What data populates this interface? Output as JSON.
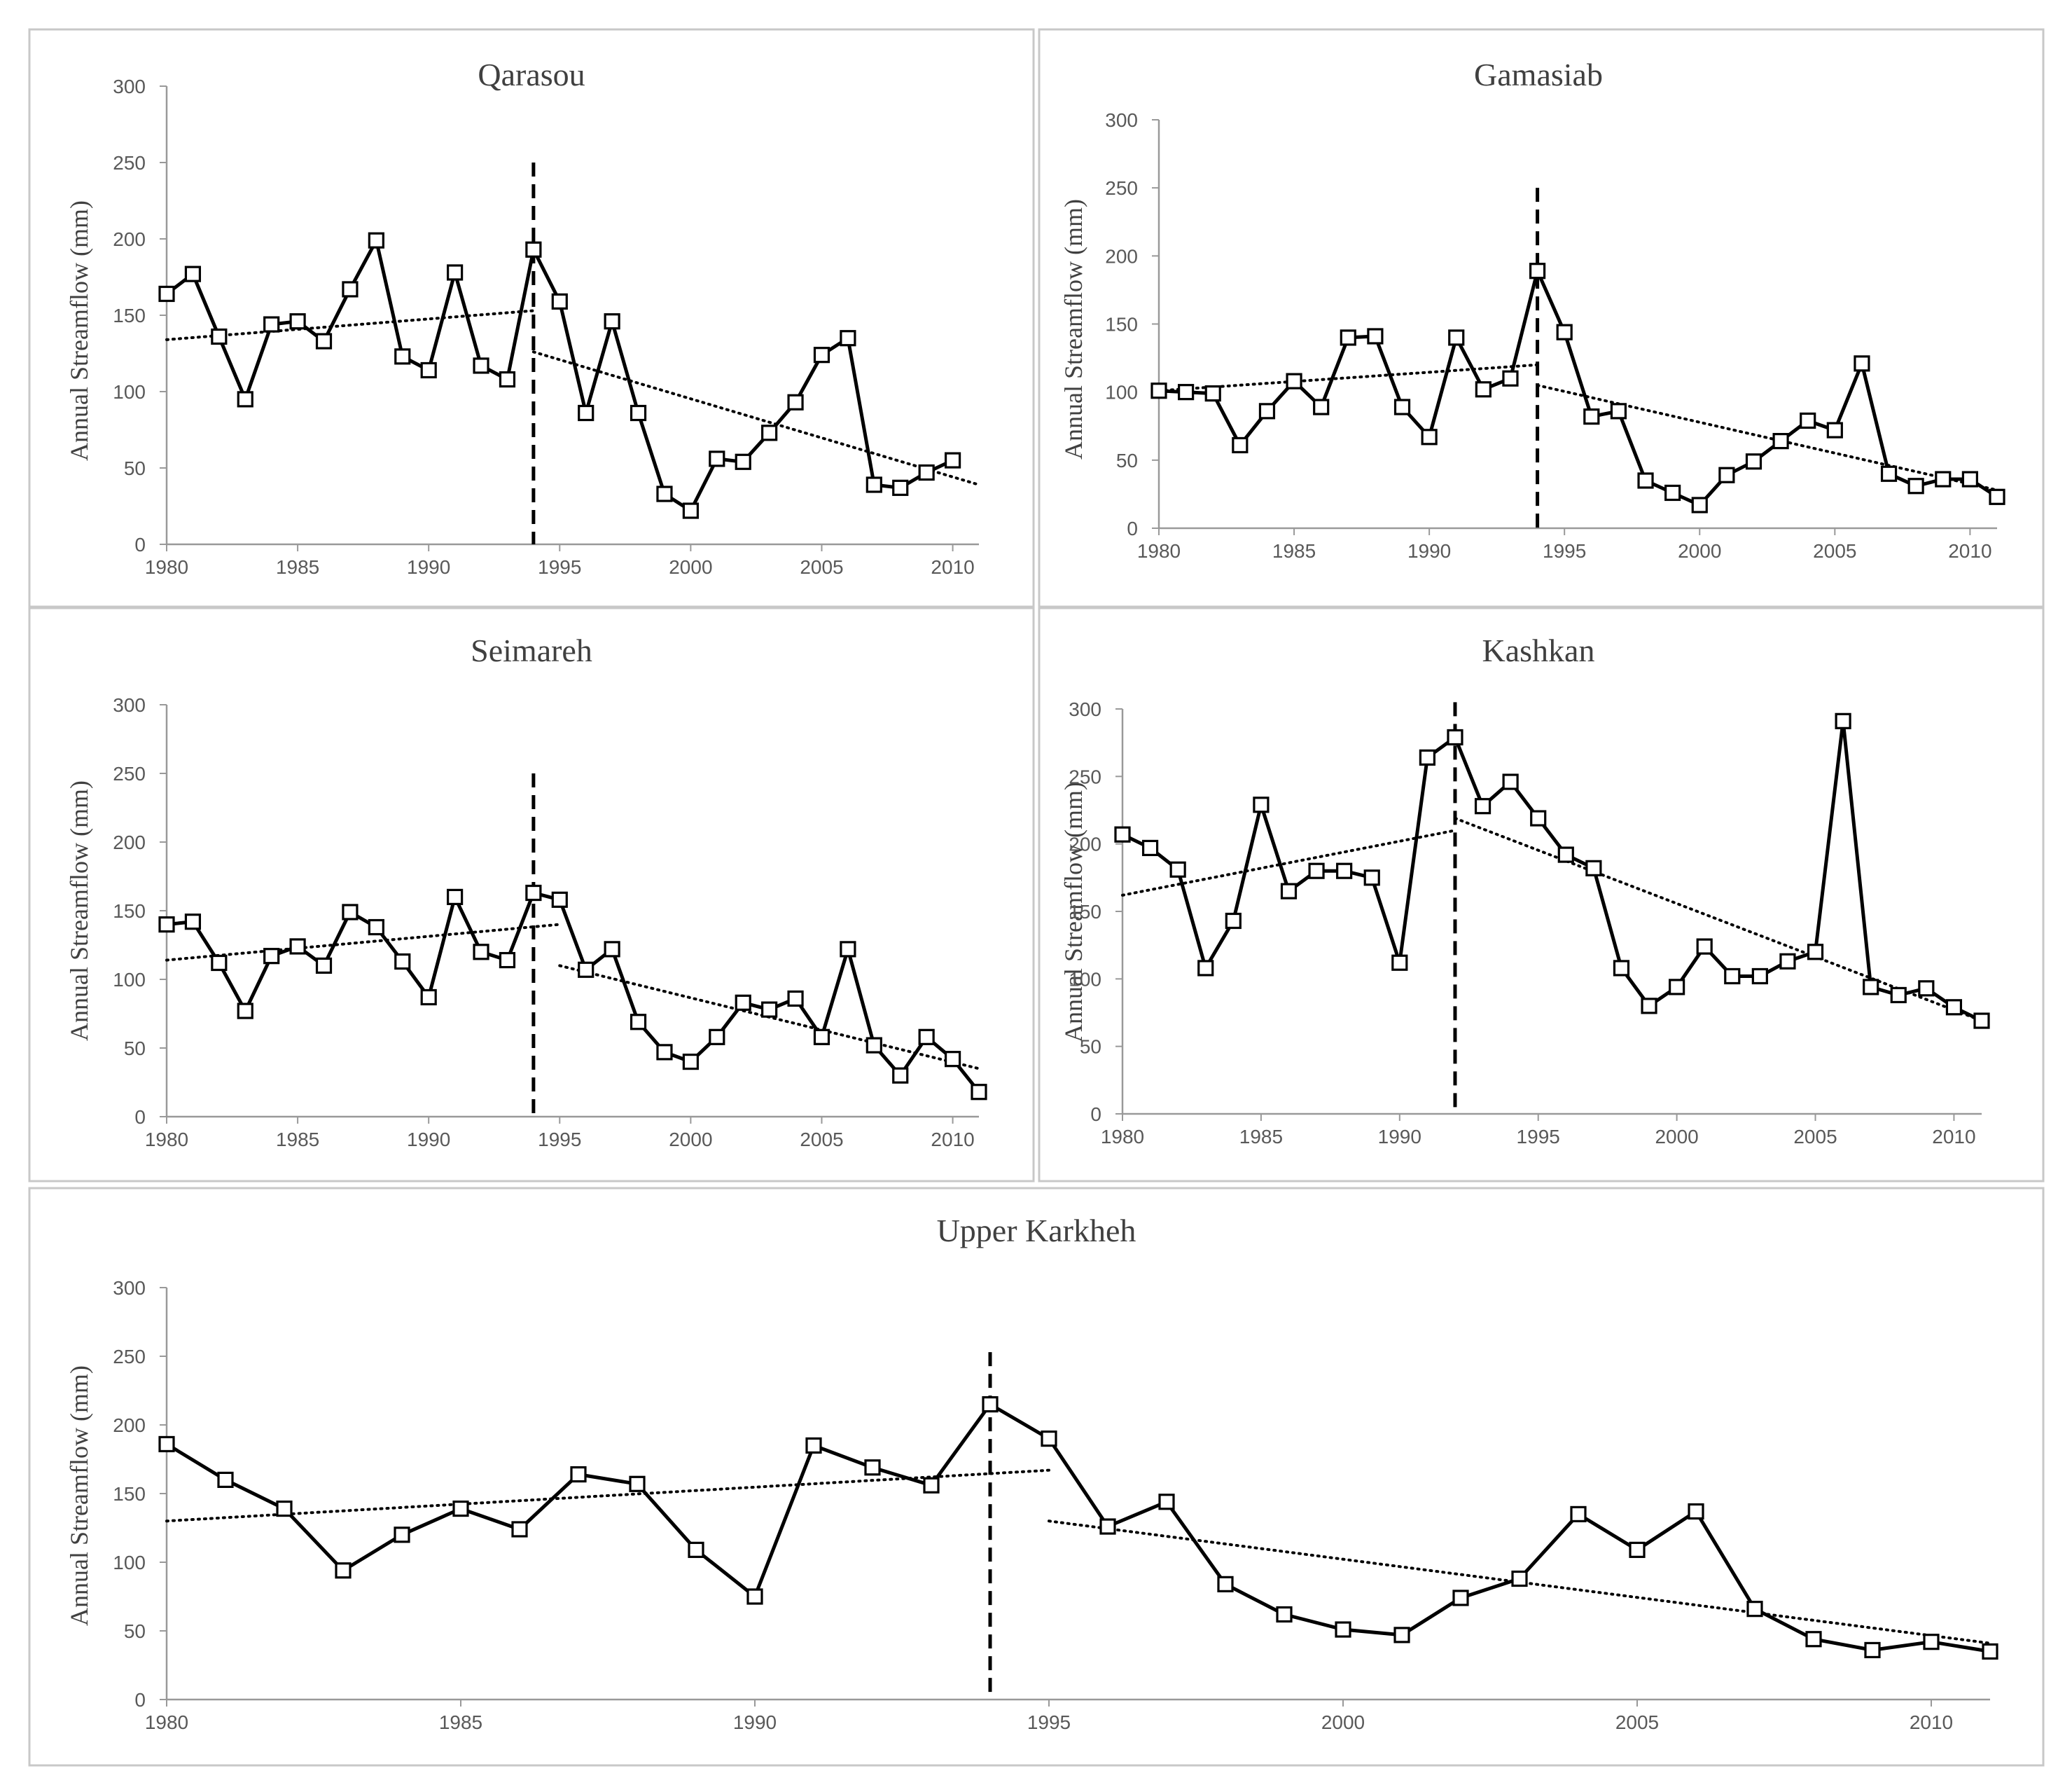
{
  "chart_data": [
    {
      "type": "line",
      "title": "Qarasou",
      "ylabel": "Annual Streamflow (mm)",
      "xlabel": "",
      "xlim": [
        1980,
        2011
      ],
      "ylim": [
        0,
        300
      ],
      "x_ticks": [
        1980,
        1985,
        1990,
        1995,
        2000,
        2005,
        2010
      ],
      "y_ticks": [
        0,
        50,
        100,
        150,
        200,
        250,
        300
      ],
      "series": [
        {
          "name": "Annual Streamflow",
          "x": [
            1980,
            1981,
            1982,
            1983,
            1984,
            1985,
            1986,
            1987,
            1988,
            1989,
            1990,
            1991,
            1992,
            1993,
            1994,
            1995,
            1996,
            1997,
            1998,
            1999,
            2000,
            2001,
            2002,
            2003,
            2004,
            2005,
            2006,
            2007,
            2008,
            2009,
            2010
          ],
          "values": [
            164,
            177,
            136,
            95,
            144,
            146,
            133,
            167,
            199,
            123,
            114,
            178,
            117,
            108,
            193,
            159,
            86,
            146,
            86,
            33,
            22,
            56,
            54,
            73,
            93,
            124,
            135,
            39,
            37,
            47,
            55
          ]
        }
      ],
      "trend_lines": [
        {
          "from": [
            1980,
            134
          ],
          "to": [
            1994,
            153
          ]
        },
        {
          "from": [
            1994,
            126
          ],
          "to": [
            2011,
            39
          ]
        }
      ],
      "change_point": {
        "x": 1994,
        "y_top": 250
      }
    },
    {
      "type": "line",
      "title": "Gamasiab",
      "ylabel": "Annual Streamflow (mm)",
      "xlabel": "",
      "xlim": [
        1980,
        2011
      ],
      "ylim": [
        0,
        300
      ],
      "x_ticks": [
        1980,
        1985,
        1990,
        1995,
        2000,
        2005,
        2010
      ],
      "y_ticks": [
        0,
        50,
        100,
        150,
        200,
        250,
        300
      ],
      "series": [
        {
          "name": "Annual Streamflow",
          "x": [
            1980,
            1981,
            1982,
            1983,
            1984,
            1985,
            1986,
            1987,
            1988,
            1989,
            1990,
            1991,
            1992,
            1993,
            1994,
            1995,
            1996,
            1997,
            1998,
            1999,
            2000,
            2001,
            2002,
            2003,
            2004,
            2005,
            2006,
            2007,
            2008,
            2009,
            2010,
            2011
          ],
          "values": [
            101,
            100,
            99,
            61,
            86,
            108,
            89,
            140,
            141,
            89,
            67,
            140,
            102,
            110,
            189,
            144,
            82,
            86,
            35,
            26,
            17,
            39,
            49,
            64,
            79,
            72,
            121,
            40,
            31,
            36,
            36,
            23
          ]
        }
      ],
      "trend_lines": [
        {
          "from": [
            1980,
            101
          ],
          "to": [
            1994,
            120
          ]
        },
        {
          "from": [
            1994,
            105
          ],
          "to": [
            2011,
            28
          ]
        }
      ],
      "change_point": {
        "x": 1994,
        "y_top": 250
      }
    },
    {
      "type": "line",
      "title": "Seimareh",
      "ylabel": "Annual Streamflow (mm)",
      "xlabel": "",
      "xlim": [
        1980,
        2011
      ],
      "ylim": [
        0,
        300
      ],
      "x_ticks": [
        1980,
        1985,
        1990,
        1995,
        2000,
        2005,
        2010
      ],
      "y_ticks": [
        0,
        50,
        100,
        150,
        200,
        250,
        300
      ],
      "series": [
        {
          "name": "Annual Streamflow",
          "x": [
            1980,
            1981,
            1982,
            1983,
            1984,
            1985,
            1986,
            1987,
            1988,
            1989,
            1990,
            1991,
            1992,
            1993,
            1994,
            1995,
            1996,
            1997,
            1998,
            1999,
            2000,
            2001,
            2002,
            2003,
            2004,
            2005,
            2006,
            2007,
            2008,
            2009,
            2010,
            2011
          ],
          "values": [
            140,
            142,
            112,
            77,
            117,
            124,
            110,
            149,
            138,
            113,
            87,
            160,
            120,
            114,
            163,
            158,
            107,
            122,
            69,
            47,
            40,
            58,
            83,
            78,
            86,
            58,
            122,
            52,
            30,
            58,
            42,
            18
          ]
        }
      ],
      "trend_lines": [
        {
          "from": [
            1980,
            114
          ],
          "to": [
            1995,
            140
          ]
        },
        {
          "from": [
            1995,
            110
          ],
          "to": [
            2011,
            35
          ]
        }
      ],
      "change_point": {
        "x": 1994,
        "y_top": 250
      }
    },
    {
      "type": "line",
      "title": "Kashkan",
      "ylabel": "Annual Streamflow (mm)",
      "xlabel": "",
      "xlim": [
        1980,
        2011
      ],
      "ylim": [
        0,
        300
      ],
      "x_ticks": [
        1980,
        1985,
        1990,
        1995,
        2000,
        2005,
        2010
      ],
      "y_ticks": [
        0,
        50,
        100,
        150,
        200,
        250,
        300
      ],
      "series": [
        {
          "name": "Annual Streamflow",
          "x": [
            1980,
            1981,
            1982,
            1983,
            1984,
            1985,
            1986,
            1987,
            1988,
            1989,
            1990,
            1991,
            1992,
            1993,
            1994,
            1995,
            1996,
            1997,
            1998,
            1999,
            2000,
            2001,
            2002,
            2003,
            2004,
            2005,
            2006,
            2007,
            2008,
            2009,
            2010,
            2011
          ],
          "values": [
            207,
            197,
            181,
            108,
            143,
            229,
            165,
            180,
            180,
            175,
            112,
            264,
            279,
            228,
            246,
            219,
            192,
            182,
            108,
            80,
            94,
            124,
            102,
            102,
            113,
            120,
            291,
            94,
            88,
            93,
            79,
            69
          ]
        }
      ],
      "trend_lines": [
        {
          "from": [
            1980,
            162
          ],
          "to": [
            1992,
            210
          ]
        },
        {
          "from": [
            1992,
            219
          ],
          "to": [
            2011,
            69
          ]
        }
      ],
      "change_point": {
        "x": 1992,
        "y_top": 305
      }
    },
    {
      "type": "line",
      "title": "Upper Karkheh",
      "ylabel": "Annual Streamflow (mm)",
      "xlabel": "",
      "xlim": [
        1980,
        2011
      ],
      "ylim": [
        0,
        300
      ],
      "x_ticks": [
        1980,
        1985,
        1990,
        1995,
        2000,
        2005,
        2010
      ],
      "y_ticks": [
        0,
        50,
        100,
        150,
        200,
        250,
        300
      ],
      "series": [
        {
          "name": "Annual Streamflow",
          "x": [
            1980,
            1981,
            1982,
            1983,
            1984,
            1985,
            1986,
            1987,
            1988,
            1989,
            1990,
            1991,
            1992,
            1993,
            1994,
            1995,
            1996,
            1997,
            1998,
            1999,
            2000,
            2001,
            2002,
            2003,
            2004,
            2005,
            2006,
            2007,
            2008,
            2009,
            2010,
            2011
          ],
          "values": [
            186,
            160,
            139,
            94,
            120,
            139,
            124,
            164,
            157,
            109,
            75,
            185,
            169,
            156,
            215,
            190,
            126,
            144,
            84,
            62,
            51,
            47,
            74,
            88,
            135,
            109,
            137,
            66,
            44,
            36,
            42,
            35
          ]
        }
      ],
      "trend_lines": [
        {
          "from": [
            1980,
            130
          ],
          "to": [
            1995,
            167
          ]
        },
        {
          "from": [
            1995,
            130
          ],
          "to": [
            2011,
            41
          ]
        }
      ],
      "change_point": {
        "x": 1994,
        "y_top": 253
      }
    }
  ]
}
